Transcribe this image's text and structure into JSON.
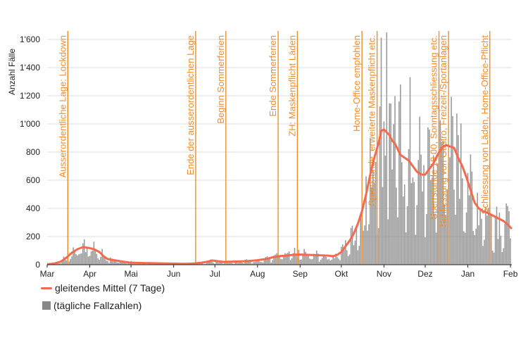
{
  "chart_data": {
    "type": "bar+line",
    "title": "",
    "ylabel": "Anzahl Fälle",
    "xlabel": "",
    "ylim": [
      0,
      1700
    ],
    "y_ticks": [
      {
        "value": 0,
        "label": "0"
      },
      {
        "value": 200,
        "label": "200"
      },
      {
        "value": 400,
        "label": "400"
      },
      {
        "value": 600,
        "label": "600"
      },
      {
        "value": 800,
        "label": "800"
      },
      {
        "value": 1000,
        "label": "1'000"
      },
      {
        "value": 1200,
        "label": "1'200"
      },
      {
        "value": 1400,
        "label": "1'400"
      },
      {
        "value": 1600,
        "label": "1'600"
      }
    ],
    "x_range_days": [
      0,
      338
    ],
    "x_ticks": [
      {
        "day": 0,
        "label": "Mar"
      },
      {
        "day": 31,
        "label": "Apr"
      },
      {
        "day": 61,
        "label": "Mai"
      },
      {
        "day": 92,
        "label": "Jun"
      },
      {
        "day": 122,
        "label": "Jul"
      },
      {
        "day": 153,
        "label": "Aug"
      },
      {
        "day": 184,
        "label": "Sep"
      },
      {
        "day": 214,
        "label": "Okt"
      },
      {
        "day": 245,
        "label": "Nov"
      },
      {
        "day": 275,
        "label": "Dez"
      },
      {
        "day": 306,
        "label": "Jan"
      },
      {
        "day": 337,
        "label": "Feb"
      }
    ],
    "series": [
      {
        "name": "gleitendes Mittel (7 Tage)",
        "type": "line",
        "color": "#f46a4e",
        "points": [
          [
            0,
            3
          ],
          [
            5,
            8
          ],
          [
            10,
            22
          ],
          [
            14,
            50
          ],
          [
            18,
            85
          ],
          [
            22,
            110
          ],
          [
            26,
            125
          ],
          [
            30,
            120
          ],
          [
            34,
            110
          ],
          [
            38,
            90
          ],
          [
            41,
            60
          ],
          [
            44,
            40
          ],
          [
            50,
            30
          ],
          [
            55,
            22
          ],
          [
            60,
            15
          ],
          [
            70,
            12
          ],
          [
            80,
            10
          ],
          [
            90,
            8
          ],
          [
            100,
            6
          ],
          [
            106,
            8
          ],
          [
            112,
            14
          ],
          [
            117,
            22
          ],
          [
            120,
            30
          ],
          [
            124,
            25
          ],
          [
            128,
            20
          ],
          [
            135,
            22
          ],
          [
            145,
            25
          ],
          [
            153,
            32
          ],
          [
            160,
            42
          ],
          [
            165,
            55
          ],
          [
            170,
            62
          ],
          [
            175,
            65
          ],
          [
            180,
            72
          ],
          [
            185,
            72
          ],
          [
            190,
            70
          ],
          [
            195,
            68
          ],
          [
            200,
            66
          ],
          [
            205,
            64
          ],
          [
            208,
            60
          ],
          [
            211,
            70
          ],
          [
            214,
            90
          ],
          [
            217,
            130
          ],
          [
            220,
            170
          ],
          [
            223,
            220
          ],
          [
            226,
            290
          ],
          [
            229,
            380
          ],
          [
            232,
            500
          ],
          [
            235,
            640
          ],
          [
            238,
            760
          ],
          [
            241,
            860
          ],
          [
            243,
            950
          ],
          [
            245,
            960
          ],
          [
            247,
            940
          ],
          [
            249,
            920
          ],
          [
            251,
            880
          ],
          [
            253,
            860
          ],
          [
            255,
            820
          ],
          [
            257,
            780
          ],
          [
            260,
            760
          ],
          [
            263,
            740
          ],
          [
            266,
            700
          ],
          [
            269,
            660
          ],
          [
            272,
            640
          ],
          [
            275,
            640
          ],
          [
            278,
            680
          ],
          [
            281,
            720
          ],
          [
            284,
            780
          ],
          [
            287,
            830
          ],
          [
            290,
            850
          ],
          [
            293,
            840
          ],
          [
            296,
            830
          ],
          [
            299,
            760
          ],
          [
            302,
            700
          ],
          [
            305,
            620
          ],
          [
            308,
            530
          ],
          [
            311,
            440
          ],
          [
            314,
            400
          ],
          [
            317,
            380
          ],
          [
            320,
            370
          ],
          [
            323,
            355
          ],
          [
            326,
            340
          ],
          [
            329,
            325
          ],
          [
            332,
            310
          ],
          [
            335,
            285
          ],
          [
            338,
            255
          ]
        ]
      },
      {
        "name": "(tägliche Fallzahlen)",
        "type": "bar",
        "color": "#999999",
        "peak": {
          "day": 247,
          "value": 1650
        }
      }
    ],
    "annotations": [
      {
        "day": 15,
        "label": "Ausserordentliche Lage: Lockdown"
      },
      {
        "day": 108,
        "label": "Ende der ausserordentlichen Lage"
      },
      {
        "day": 130,
        "label": "Beginn Sommerferien"
      },
      {
        "day": 168,
        "label": "Ende Sommerferien"
      },
      {
        "day": 182,
        "label": "ZH: Maskenpflicht Läden"
      },
      {
        "day": 229,
        "label": "Home-Office empfohlen"
      },
      {
        "day": 240,
        "label": "Sperrstunde, erweiterte Maskenpflicht etc."
      },
      {
        "day": 285,
        "label": "Sperrstunde 19.00, Sonntagsschliessung etc."
      },
      {
        "day": 292,
        "label": "Schliessung von Gastro, Freizeit-/Sportanlagen"
      },
      {
        "day": 322,
        "label": "Schliessung von Läden, Home-Office-Pflicht"
      }
    ]
  },
  "legend": {
    "line_label": "gleitendes Mittel (7 Tage)",
    "bar_label": "(tägliche Fallzahlen)"
  },
  "colors": {
    "line": "#f46a4e",
    "bars": "#999999",
    "annotation": "#f08c28",
    "grid": "#dddddd"
  }
}
